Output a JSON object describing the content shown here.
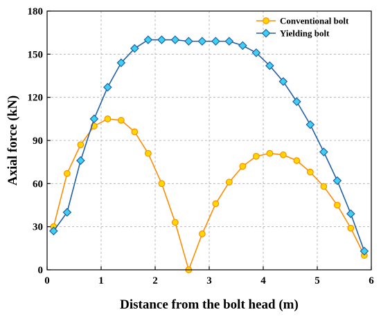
{
  "chart_data": {
    "type": "line",
    "xlabel": "Distance from the bolt head (m)",
    "ylabel": "Axial force (kN)",
    "xlim": [
      0,
      6
    ],
    "ylim": [
      0,
      180
    ],
    "xticks": [
      0,
      1,
      2,
      3,
      4,
      5,
      6
    ],
    "yticks": [
      0,
      30,
      60,
      90,
      120,
      150,
      180
    ],
    "grid": true,
    "legend_position": "top-right",
    "series": [
      {
        "name": "Conventional bolt",
        "marker": "circle",
        "line_color": "#FF8C00",
        "marker_fill": "#FFD700",
        "marker_edge": "#FF8C00",
        "x": [
          0.12,
          0.37,
          0.62,
          0.87,
          1.12,
          1.37,
          1.62,
          1.87,
          2.12,
          2.37,
          2.62,
          2.87,
          3.12,
          3.37,
          3.62,
          3.87,
          4.12,
          4.37,
          4.62,
          4.87,
          5.12,
          5.37,
          5.62,
          5.87
        ],
        "values": [
          30,
          67,
          87,
          100,
          105,
          104,
          96,
          81,
          60,
          33,
          0,
          25,
          46,
          61,
          72,
          79,
          81,
          80,
          76,
          68,
          58,
          45,
          29,
          10
        ]
      },
      {
        "name": "Yielding bolt",
        "marker": "diamond",
        "line_color": "#1F5FA8",
        "marker_fill": "#3FD0F0",
        "marker_edge": "#1F5FA8",
        "x": [
          0.12,
          0.37,
          0.62,
          0.87,
          1.12,
          1.37,
          1.62,
          1.87,
          2.12,
          2.37,
          2.62,
          2.87,
          3.12,
          3.37,
          3.62,
          3.87,
          4.12,
          4.37,
          4.62,
          4.87,
          5.12,
          5.37,
          5.62,
          5.87
        ],
        "values": [
          27,
          40,
          76,
          105,
          127,
          144,
          154,
          160,
          160,
          160,
          159,
          159,
          159,
          159,
          156,
          151,
          142,
          131,
          117,
          101,
          82,
          62,
          39,
          13
        ]
      }
    ]
  }
}
